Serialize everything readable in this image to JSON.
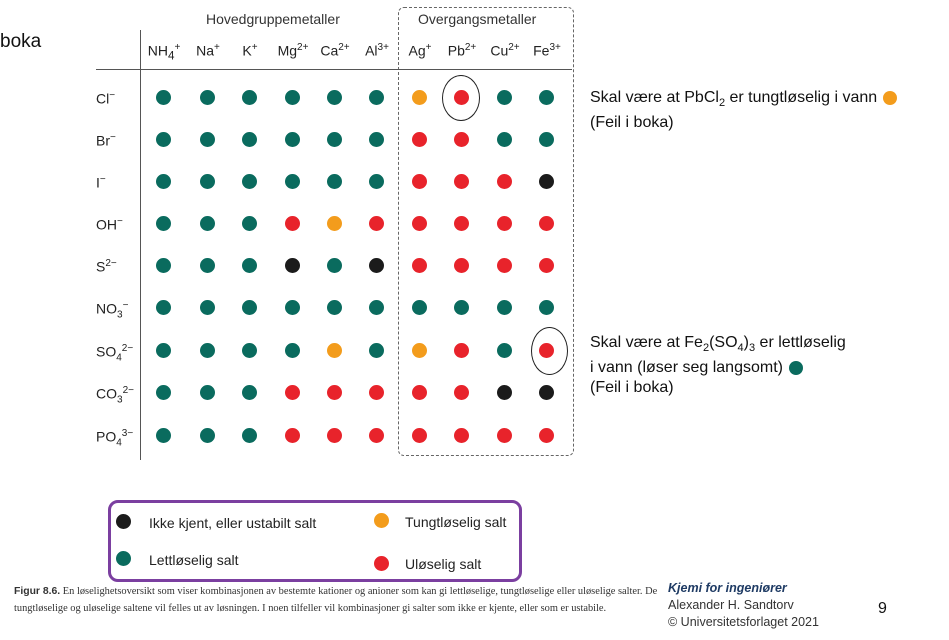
{
  "slide_fragment": "boka",
  "groups": {
    "main_group": "Hovedgruppemetaller",
    "transition": "Overgangsmetaller"
  },
  "cations": [
    {
      "base": "NH",
      "sub": "4",
      "sup": "+"
    },
    {
      "base": "Na",
      "sup": "+"
    },
    {
      "base": "K",
      "sup": "+"
    },
    {
      "base": "Mg",
      "sup": "2+"
    },
    {
      "base": "Ca",
      "sup": "2+"
    },
    {
      "base": "Al",
      "sup": "3+"
    },
    {
      "base": "Ag",
      "sup": "+"
    },
    {
      "base": "Pb",
      "sup": "2+"
    },
    {
      "base": "Cu",
      "sup": "2+"
    },
    {
      "base": "Fe",
      "sup": "3+"
    }
  ],
  "anions": [
    {
      "base": "Cl",
      "sup": "−"
    },
    {
      "base": "Br",
      "sup": "−"
    },
    {
      "base": "I",
      "sup": "−"
    },
    {
      "base": "OH",
      "sup": "−"
    },
    {
      "base": "S",
      "sup": "2−"
    },
    {
      "base": "NO",
      "sub": "3",
      "sup": "−"
    },
    {
      "base": "SO",
      "sub": "4",
      "sup": "2−"
    },
    {
      "base": "CO",
      "sub": "3",
      "sup": "2−"
    },
    {
      "base": "PO",
      "sub": "4",
      "sup": "3−"
    }
  ],
  "grid": [
    [
      "G",
      "G",
      "G",
      "G",
      "G",
      "G",
      "O",
      "R",
      "G",
      "G"
    ],
    [
      "G",
      "G",
      "G",
      "G",
      "G",
      "G",
      "R",
      "R",
      "G",
      "G"
    ],
    [
      "G",
      "G",
      "G",
      "G",
      "G",
      "G",
      "R",
      "R",
      "R",
      "B"
    ],
    [
      "G",
      "G",
      "G",
      "R",
      "O",
      "R",
      "R",
      "R",
      "R",
      "R"
    ],
    [
      "G",
      "G",
      "G",
      "B",
      "G",
      "B",
      "R",
      "R",
      "R",
      "R"
    ],
    [
      "G",
      "G",
      "G",
      "G",
      "G",
      "G",
      "G",
      "G",
      "G",
      "G"
    ],
    [
      "G",
      "G",
      "G",
      "G",
      "O",
      "G",
      "O",
      "R",
      "G",
      "R"
    ],
    [
      "G",
      "G",
      "G",
      "R",
      "R",
      "R",
      "R",
      "R",
      "B",
      "B"
    ],
    [
      "G",
      "G",
      "G",
      "R",
      "R",
      "R",
      "R",
      "R",
      "R",
      "R"
    ]
  ],
  "colors": {
    "G": "#0a6b5e",
    "R": "#e8232b",
    "O": "#f39c1c",
    "B": "#1b1b1b"
  },
  "notes": {
    "note1_line1_pre": "Skal være at PbCl",
    "note1_line1_sub": "2",
    "note1_line1_post": " er tungtløselig i vann",
    "note1_line2": "(Feil i boka)",
    "note2_line1_pre": "Skal være at Fe",
    "note2_line1_sub1": "2",
    "note2_line1_mid": "(SO",
    "note2_line1_sub2": "4",
    "note2_line1_close": ")",
    "note2_line1_sub3": "3",
    "note2_line1_post": " er lettløselig",
    "note2_line2": "i vann (løser seg langsomt)",
    "note2_line3": "(Feil i boka)"
  },
  "legend": {
    "unknown": "Ikke kjent, eller ustabilt salt",
    "soluble": "Lettløselig salt",
    "sparingly": "Tungtløselig salt",
    "insoluble": "Uløselig salt"
  },
  "caption": {
    "label": "Figur 8.6.",
    "text": " En løselighetsoversikt som viser kombinasjonen av bestemte kationer og anioner som kan gi lettløselige, tungtløselige eller uløselige salter. De tungtløselige og uløselige saltene vil felles ut av løsningen. I noen tilfeller vil kombinasjoner gi salter som ikke er kjente, eller som er ustabile."
  },
  "book": {
    "title": "Kjemi for ingeniører",
    "author": "Alexander H. Sandtorv",
    "publisher": "© Universitetsforlaget 2021"
  },
  "page_number": "9"
}
